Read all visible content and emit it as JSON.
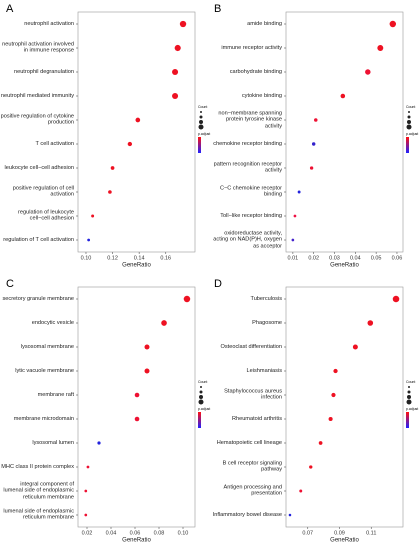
{
  "chart_data": [
    {
      "type": "scatter",
      "panel": "A",
      "xlabel": "GeneRatio",
      "legend_size_title": "Count",
      "legend_color_title": "p.adjust",
      "categories": [
        "neutrophil activation",
        "neutrophil activation involved in immune response",
        "neutrophil degranulation",
        "neutrophil mediated immunity",
        "positive regulation of cytokine production",
        "T cell activation",
        "leukocyte cell−cell adhesion",
        "positive regulation of cell activation",
        "regulation of leukocyte cell−cell adhesion",
        "regulation of T cell activation"
      ],
      "values": [
        0.173,
        0.169,
        0.167,
        0.167,
        0.139,
        0.133,
        0.12,
        0.118,
        0.105,
        0.102
      ],
      "colors": [
        "#ee1122",
        "#ee1122",
        "#ee1122",
        "#ee1122",
        "#ee1122",
        "#ee1122",
        "#ee1122",
        "#ee1122",
        "#ee1122",
        "#2222dd"
      ],
      "xlim": [
        0.094,
        0.182
      ],
      "xticks": [
        {
          "value": 0.1,
          "label": "0.10"
        },
        0.12,
        0.14,
        0.16
      ]
    },
    {
      "type": "scatter",
      "panel": "B",
      "xlabel": "GeneRatio",
      "legend_size_title": "Count",
      "legend_color_title": "p.adjust",
      "categories": [
        "amide binding",
        "immune receptor activity",
        "carbohydrate binding",
        "cytokine binding",
        "non−membrane spanning protein tyrosine kinase activity",
        "chemokine receptor binding",
        "pattern recognition receptor activity",
        "C−C chemokine receptor binding",
        "Toll−like receptor binding",
        "oxidoreductase activity, acting on NAD(P)H, oxygen as acceptor"
      ],
      "values": [
        0.058,
        0.052,
        0.046,
        0.034,
        0.021,
        0.02,
        0.019,
        0.013,
        0.011,
        0.01
      ],
      "colors": [
        "#ee1122",
        "#ee1122",
        "#ee1133",
        "#ee1122",
        "#ee1133",
        "#3322cc",
        "#ee1133",
        "#2222dd",
        "#ee1144",
        "#4422cc"
      ],
      "xlim": [
        0.0067,
        0.0629
      ],
      "xticks": [
        0.01,
        0.02,
        0.03,
        0.04,
        0.05,
        0.06
      ]
    },
    {
      "type": "scatter",
      "panel": "C",
      "xlabel": "GeneRatio",
      "legend_size_title": "Count",
      "legend_color_title": "p.adjust",
      "categories": [
        "secretory granule membrane",
        "endocytic vesicle",
        "lysosomal membrane",
        "lytic vacuole membrane",
        "membrane raft",
        "membrane microdomain",
        "lysosomal lumen",
        "MHC class II protein complex",
        "integral component of lumenal side of endoplasmic reticulum membrane",
        "lumenal side of endoplasmic reticulum membrane"
      ],
      "values": [
        0.1033,
        0.0842,
        0.07,
        0.07,
        0.0617,
        0.0617,
        0.03,
        0.0208,
        0.019,
        0.019
      ],
      "colors": [
        "#ee1122",
        "#ee1122",
        "#ee1122",
        "#ee1122",
        "#ee1133",
        "#ee1133",
        "#2222dd",
        "#ee1133",
        "#ee1133",
        "#ee1133"
      ],
      "xlim": [
        0.0125,
        0.11
      ],
      "xticks": [
        0.02,
        0.04,
        0.06,
        0.08,
        {
          "value": 0.1,
          "label": "0.10"
        }
      ]
    },
    {
      "type": "scatter",
      "panel": "D",
      "xlabel": "GeneRatio",
      "legend_size_title": "Count",
      "legend_color_title": "p.adjust",
      "categories": [
        "Tuberculosis",
        "Phagosome",
        "Osteoclast differentiation",
        "Leishmaniasis",
        "Staphylococcus aureus infection",
        "Rheumatoid arthritis",
        "Hematopoietic cell lineage",
        "B cell receptor signaling pathway",
        "Antigen processing and presentation",
        "Inflammatory bowel disease"
      ],
      "values": [
        0.1256,
        0.1094,
        0.1,
        0.0875,
        0.0862,
        0.0844,
        0.0781,
        0.0719,
        0.0656,
        0.0588
      ],
      "colors": [
        "#ee1122",
        "#ee1122",
        "#ee1122",
        "#ee1122",
        "#ee1122",
        "#ee1122",
        "#ee1122",
        "#ee1122",
        "#ee1133",
        "#2222dd"
      ],
      "xlim": [
        0.0563,
        0.13
      ],
      "xticks": [
        0.07,
        0.09,
        0.11
      ]
    }
  ]
}
